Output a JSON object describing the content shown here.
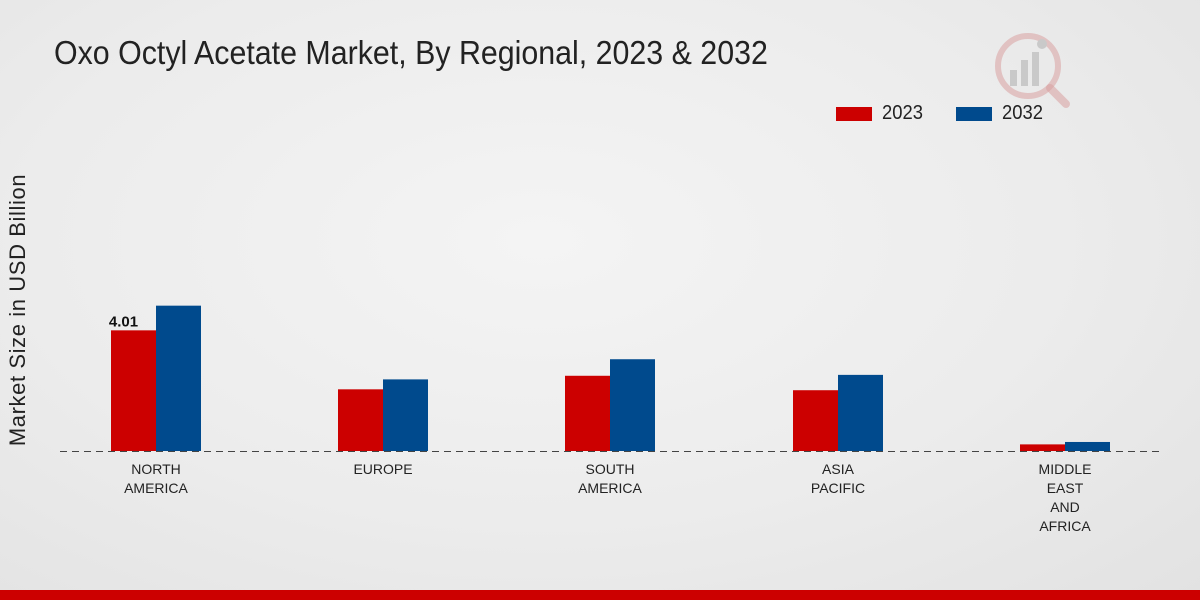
{
  "colors": {
    "series_2023": "#cc0000",
    "series_2032": "#004a8d",
    "footer": "#cc0000",
    "text": "#222222",
    "logo": "#d9a0a0"
  },
  "chart_data": {
    "type": "bar",
    "title": "Oxo Octyl Acetate Market, By Regional, 2023 & 2032",
    "xlabel": "",
    "ylabel": "Market Size in USD Billion",
    "categories": [
      [
        "NORTH",
        "AMERICA"
      ],
      [
        "EUROPE"
      ],
      [
        "SOUTH",
        "AMERICA"
      ],
      [
        "ASIA",
        "PACIFIC"
      ],
      [
        "MIDDLE",
        "EAST",
        "AND",
        "AFRICA"
      ]
    ],
    "series": [
      {
        "name": "2023",
        "color": "#cc0000",
        "values": [
          4.01,
          2.05,
          2.5,
          2.02,
          0.22
        ]
      },
      {
        "name": "2032",
        "color": "#004a8d",
        "values": [
          4.83,
          2.38,
          3.05,
          2.53,
          0.3
        ]
      }
    ],
    "data_labels": [
      {
        "series": 0,
        "index": 0,
        "text": "4.01"
      }
    ],
    "ylim": [
      0,
      11.2
    ],
    "legend": "top-right",
    "grid": false,
    "baseline": "dashed"
  }
}
